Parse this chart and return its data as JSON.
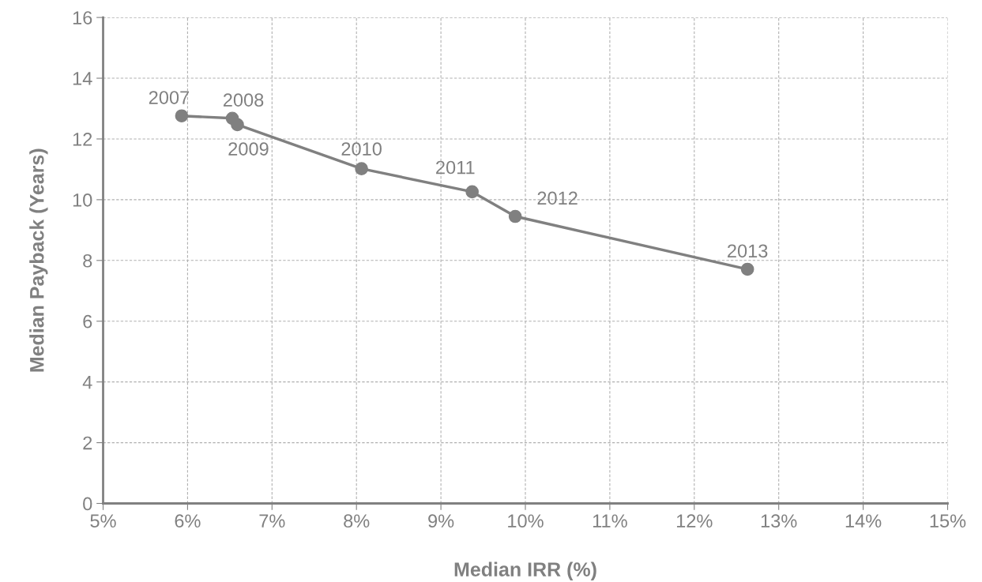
{
  "chart_data": {
    "type": "line",
    "xlabel": "Median IRR (%)",
    "ylabel": "Median Payback (Years)",
    "x": [
      5.93,
      6.53,
      6.59,
      8.06,
      9.37,
      9.88,
      12.63
    ],
    "series": [
      {
        "color": "#808080",
        "values": [
          12.76,
          12.68,
          12.47,
          11.02,
          10.26,
          9.45,
          7.71
        ]
      }
    ],
    "marker": "circle",
    "line_style": "solid",
    "grid": true,
    "legend": false,
    "xlim": [
      5,
      15
    ],
    "ylim": [
      0,
      16
    ],
    "xticks": [
      {
        "value": 5,
        "label": "5%"
      },
      {
        "value": 6,
        "label": "6%"
      },
      {
        "value": 7,
        "label": "7%"
      },
      {
        "value": 8,
        "label": "8%"
      },
      {
        "value": 9,
        "label": "9%"
      },
      {
        "value": 10,
        "label": "10%"
      },
      {
        "value": 11,
        "label": "11%"
      },
      {
        "value": 12,
        "label": "12%"
      },
      {
        "value": 13,
        "label": "13%"
      },
      {
        "value": 14,
        "label": "14%"
      },
      {
        "value": 15,
        "label": "15%"
      }
    ],
    "yticks": [
      0,
      2,
      4,
      6,
      8,
      10,
      12,
      14,
      16
    ],
    "annotations": [
      {
        "text": "2007",
        "x": 5.93,
        "y": 12.76
      },
      {
        "text": "2008",
        "x": 6.53,
        "y": 12.68
      },
      {
        "text": "2009",
        "x": 6.59,
        "y": 12.47
      },
      {
        "text": "2010",
        "x": 8.06,
        "y": 11.02
      },
      {
        "text": "2011",
        "x": 9.37,
        "y": 10.26
      },
      {
        "text": "2012",
        "x": 9.88,
        "y": 9.45
      },
      {
        "text": "2013",
        "x": 12.63,
        "y": 7.71
      }
    ]
  }
}
